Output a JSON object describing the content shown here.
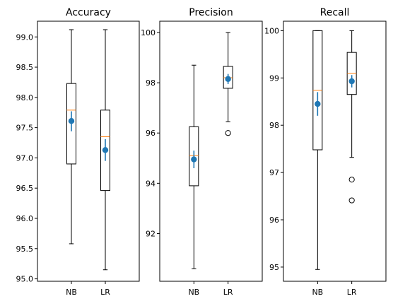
{
  "chart_data": [
    {
      "type": "box",
      "title": "Accuracy",
      "categories": [
        "NB",
        "LR"
      ],
      "ylim": [
        94.96,
        99.26
      ],
      "yticks": [
        95.0,
        95.5,
        96.0,
        96.5,
        97.0,
        97.5,
        98.0,
        98.5,
        99.0
      ],
      "ytick_labels": [
        "95.0",
        "95.5",
        "96.0",
        "96.5",
        "97.0",
        "97.5",
        "98.0",
        "98.5",
        "99.0"
      ],
      "boxes": [
        {
          "name": "NB",
          "whislo": 95.58,
          "q1": 96.9,
          "med": 97.79,
          "q3": 98.23,
          "whishi": 99.12,
          "mean": 97.61,
          "mean_err": [
            97.44,
            97.77
          ],
          "fliers": []
        },
        {
          "name": "LR",
          "whislo": 95.15,
          "q1": 96.46,
          "med": 97.35,
          "q3": 97.79,
          "whishi": 99.12,
          "mean": 97.13,
          "mean_err": [
            96.95,
            97.31
          ],
          "fliers": []
        }
      ]
    },
    {
      "type": "box",
      "title": "Precision",
      "categories": [
        "NB",
        "LR"
      ],
      "ylim": [
        90.1,
        100.45
      ],
      "yticks": [
        92,
        94,
        96,
        98,
        100
      ],
      "ytick_labels": [
        "92",
        "94",
        "96",
        "98",
        "100"
      ],
      "boxes": [
        {
          "name": "NB",
          "whislo": 90.6,
          "q1": 93.9,
          "med": 95.1,
          "q3": 96.25,
          "whishi": 98.7,
          "mean": 94.95,
          "mean_err": [
            94.6,
            95.3
          ],
          "fliers": []
        },
        {
          "name": "LR",
          "whislo": 96.45,
          "q1": 97.78,
          "med": 98.2,
          "q3": 98.65,
          "whishi": 100.0,
          "mean": 98.15,
          "mean_err": [
            97.95,
            98.35
          ],
          "fliers": [
            96.0
          ]
        }
      ]
    },
    {
      "type": "box",
      "title": "Recall",
      "categories": [
        "NB",
        "LR"
      ],
      "ylim": [
        94.7,
        100.2
      ],
      "yticks": [
        95,
        96,
        97,
        98,
        99,
        100
      ],
      "ytick_labels": [
        "95",
        "96",
        "97",
        "98",
        "99",
        "100"
      ],
      "boxes": [
        {
          "name": "NB",
          "whislo": 94.95,
          "q1": 97.48,
          "med": 98.74,
          "q3": 100.0,
          "whishi": 100.0,
          "mean": 98.45,
          "mean_err": [
            98.2,
            98.7
          ],
          "fliers": []
        },
        {
          "name": "LR",
          "whislo": 97.32,
          "q1": 98.65,
          "med": 99.1,
          "q3": 99.54,
          "whishi": 100.0,
          "mean": 98.93,
          "mean_err": [
            98.8,
            99.06
          ],
          "fliers": [
            96.85,
            96.41
          ]
        }
      ]
    }
  ],
  "colors": {
    "box": "#000000",
    "median": "#ff7f0e",
    "mean_marker": "#1f77b4",
    "axes": "#000000"
  }
}
